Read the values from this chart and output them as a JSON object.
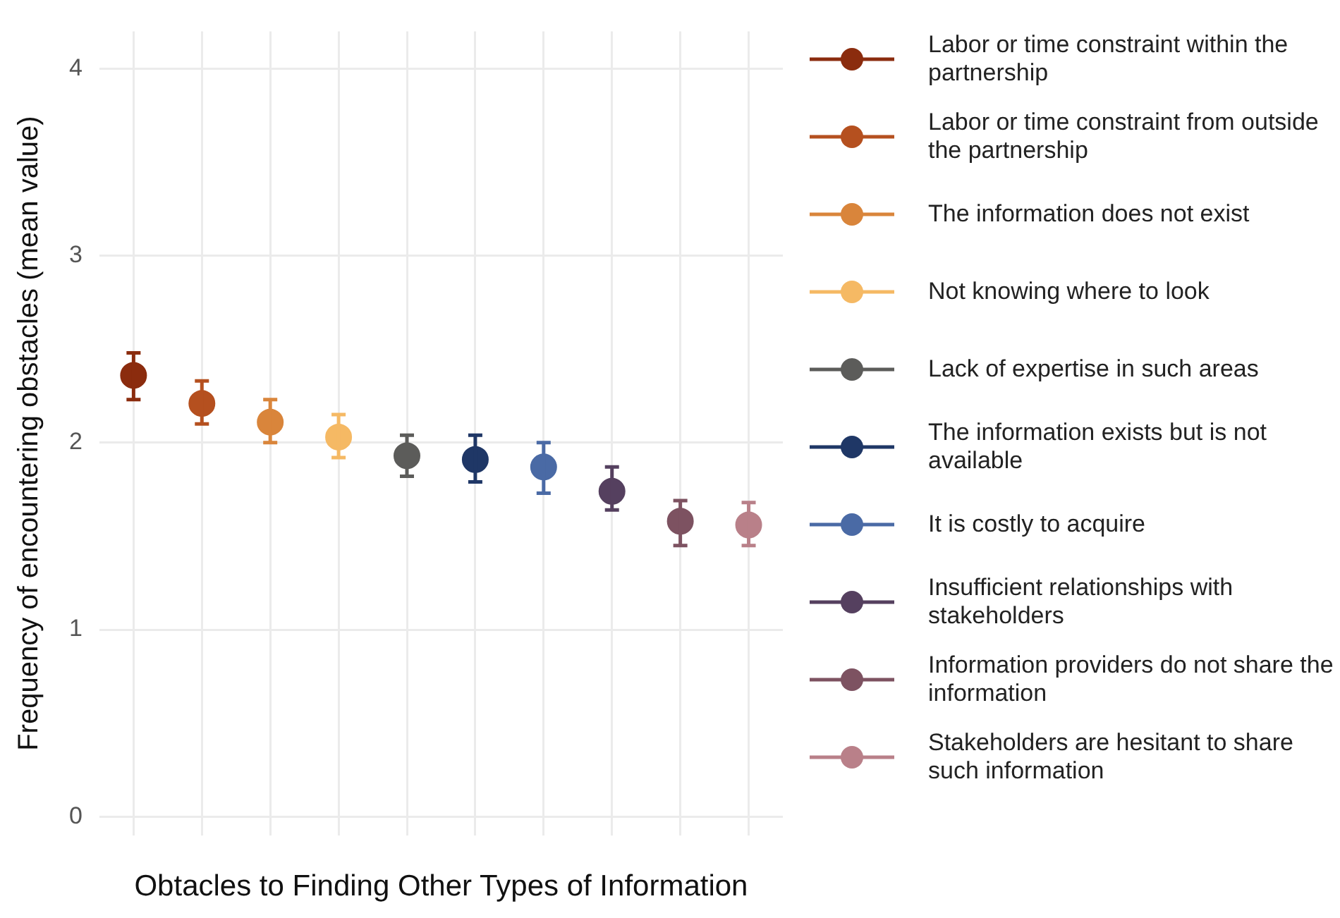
{
  "chart_data": {
    "type": "scatter",
    "xlabel": "Obtacles to Finding Other Types of Information",
    "ylabel": "Frequency of encountering obstacles (mean value)",
    "categories": [
      null,
      null,
      null,
      null,
      null,
      null,
      null,
      null,
      null,
      null
    ],
    "ylim": [
      -0.1,
      4.2
    ],
    "yticks": [
      0,
      1,
      2,
      3,
      4
    ],
    "grid": true,
    "legend": "right",
    "marker": "circle",
    "series": [
      {
        "name": "Labor or time constraint within the partnership",
        "color": "#8b2c0e",
        "values": [
          2.36,
          null,
          null,
          null,
          null,
          null,
          null,
          null,
          null,
          null
        ],
        "errors": [
          [
            2.23,
            2.48
          ],
          null,
          null,
          null,
          null,
          null,
          null,
          null,
          null,
          null
        ]
      },
      {
        "name": "Labor or time constraint from outside the partnership",
        "color": "#b5501f",
        "values": [
          null,
          2.21,
          null,
          null,
          null,
          null,
          null,
          null,
          null,
          null
        ],
        "errors": [
          null,
          [
            2.1,
            2.33
          ],
          null,
          null,
          null,
          null,
          null,
          null,
          null,
          null
        ]
      },
      {
        "name": "The information does not exist",
        "color": "#d9853b",
        "values": [
          null,
          null,
          2.11,
          null,
          null,
          null,
          null,
          null,
          null,
          null
        ],
        "errors": [
          null,
          null,
          [
            2.0,
            2.23
          ],
          null,
          null,
          null,
          null,
          null,
          null,
          null
        ]
      },
      {
        "name": "Not knowing where to look",
        "color": "#f5b964",
        "values": [
          null,
          null,
          null,
          2.03,
          null,
          null,
          null,
          null,
          null,
          null
        ],
        "errors": [
          null,
          null,
          null,
          [
            1.92,
            2.15
          ],
          null,
          null,
          null,
          null,
          null,
          null
        ]
      },
      {
        "name": "Lack of expertise in such areas",
        "color": "#5c5c5a",
        "values": [
          null,
          null,
          null,
          null,
          1.93,
          null,
          null,
          null,
          null,
          null
        ],
        "errors": [
          null,
          null,
          null,
          null,
          [
            1.82,
            2.04
          ],
          null,
          null,
          null,
          null,
          null
        ]
      },
      {
        "name": "The information exists but is not available",
        "color": "#1f3766",
        "values": [
          null,
          null,
          null,
          null,
          null,
          1.91,
          null,
          null,
          null,
          null
        ],
        "errors": [
          null,
          null,
          null,
          null,
          null,
          [
            1.79,
            2.04
          ],
          null,
          null,
          null,
          null
        ]
      },
      {
        "name": "It is costly to acquire",
        "color": "#4a6aa5",
        "values": [
          null,
          null,
          null,
          null,
          null,
          null,
          1.87,
          null,
          null,
          null
        ],
        "errors": [
          null,
          null,
          null,
          null,
          null,
          null,
          [
            1.73,
            2.0
          ],
          null,
          null,
          null
        ]
      },
      {
        "name": "Insufficient relationships with stakeholders",
        "color": "#55405f",
        "values": [
          null,
          null,
          null,
          null,
          null,
          null,
          null,
          1.74,
          null,
          null
        ],
        "errors": [
          null,
          null,
          null,
          null,
          null,
          null,
          null,
          [
            1.64,
            1.87
          ],
          null,
          null
        ]
      },
      {
        "name": "Information providers do not share the information",
        "color": "#7d5261",
        "values": [
          null,
          null,
          null,
          null,
          null,
          null,
          null,
          null,
          1.58,
          null
        ],
        "errors": [
          null,
          null,
          null,
          null,
          null,
          null,
          null,
          null,
          [
            1.45,
            1.69
          ],
          null
        ]
      },
      {
        "name": "Stakeholders are hesitant to share such information",
        "color": "#b98089",
        "values": [
          null,
          null,
          null,
          null,
          null,
          null,
          null,
          null,
          null,
          1.56
        ],
        "errors": [
          null,
          null,
          null,
          null,
          null,
          null,
          null,
          null,
          null,
          [
            1.45,
            1.68
          ]
        ]
      }
    ]
  }
}
